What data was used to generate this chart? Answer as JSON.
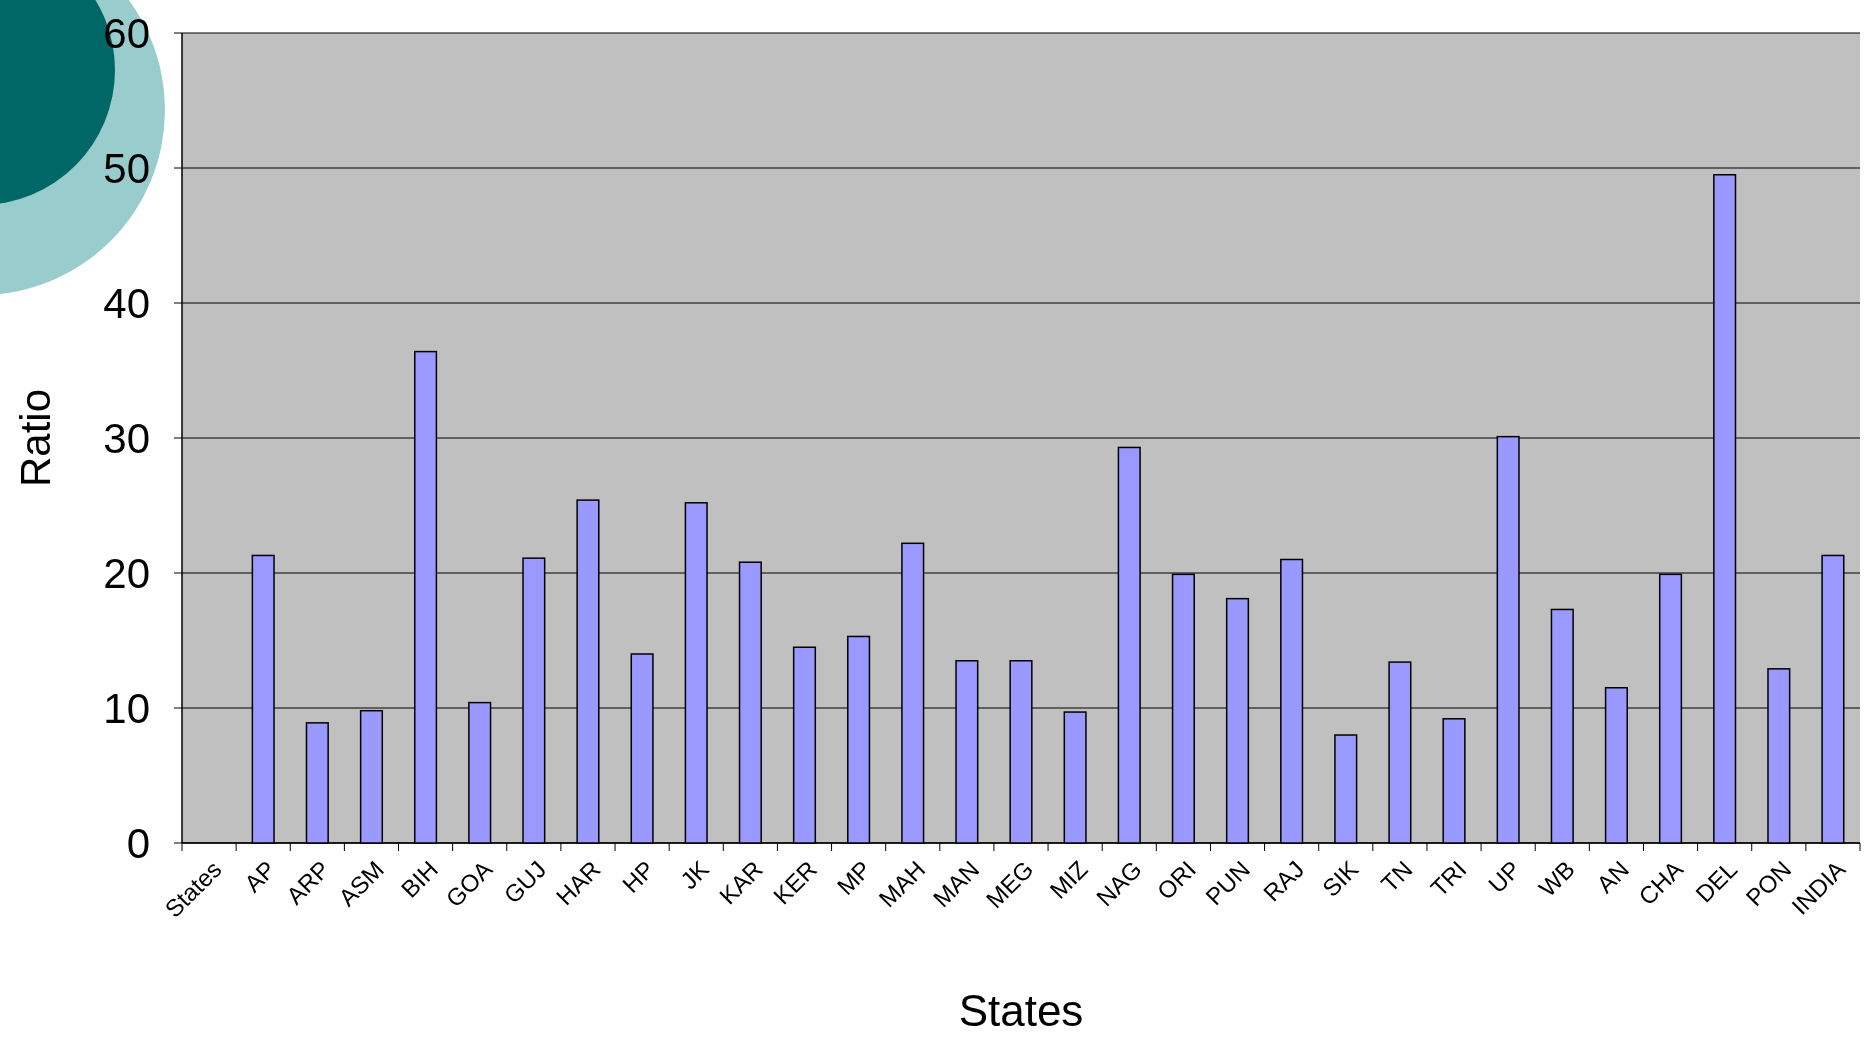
{
  "chart_data": {
    "type": "bar",
    "xlabel": "States",
    "ylabel": "Ratio",
    "categories": [
      "States",
      "AP",
      "ARP",
      "ASM",
      "BIH",
      "GOA",
      "GUJ",
      "HAR",
      "HP",
      "JK",
      "KAR",
      "KER",
      "MP",
      "MAH",
      "MAN",
      "MEG",
      "MIZ",
      "NAG",
      "ORI",
      "PUN",
      "RAJ",
      "SIK",
      "TN",
      "TRI",
      "UP",
      "WB",
      "AN",
      "CHA",
      "DEL",
      "PON",
      "INDIA"
    ],
    "values": [
      null,
      21.3,
      8.9,
      9.8,
      36.4,
      10.4,
      21.1,
      25.4,
      14.0,
      25.2,
      20.8,
      14.5,
      15.3,
      22.2,
      13.5,
      13.5,
      9.7,
      29.3,
      19.9,
      18.1,
      21.0,
      8.0,
      13.4,
      9.2,
      30.1,
      17.3,
      11.5,
      19.9,
      49.5,
      12.9,
      21.3
    ],
    "color": "#9999ff",
    "ylim": [
      0,
      60
    ],
    "yticks": [
      0,
      10,
      20,
      30,
      40,
      50,
      60
    ],
    "grid": "y"
  }
}
